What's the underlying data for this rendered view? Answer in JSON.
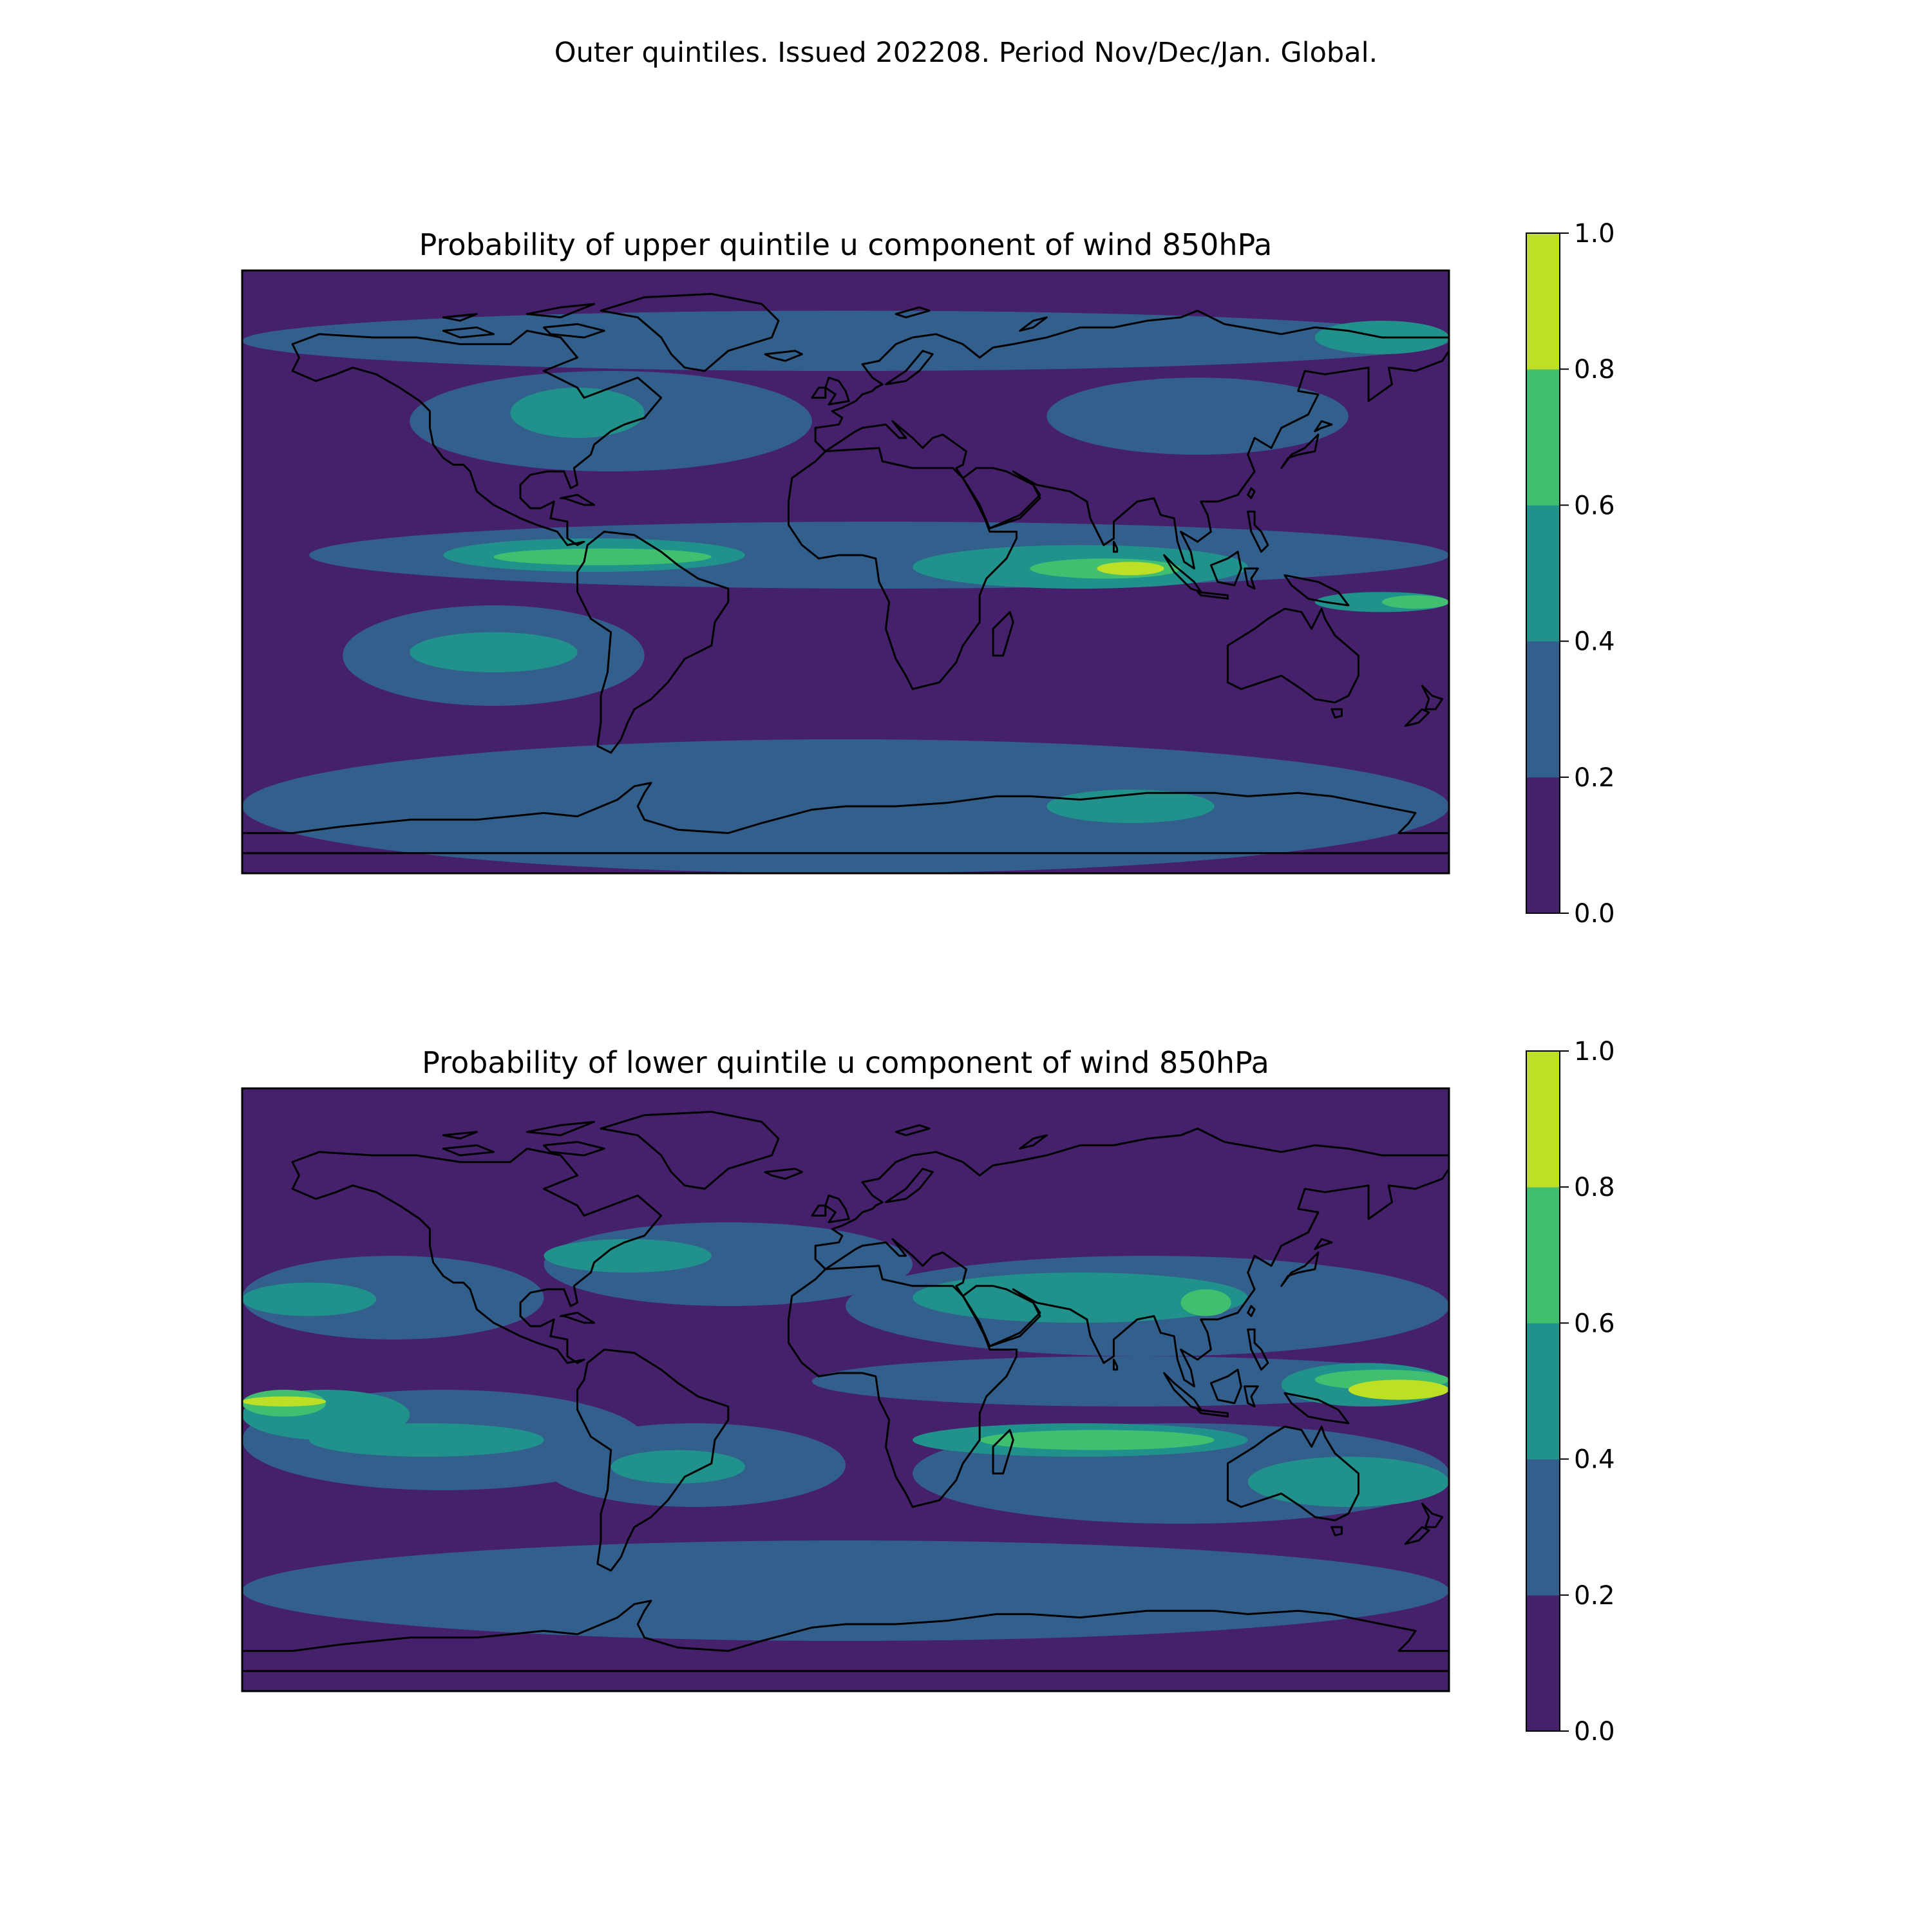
{
  "figure": {
    "suptitle": "Outer quintiles. Issued 202208. Period Nov/Dec/Jan. Global."
  },
  "colorbar": {
    "levels": [
      0.0,
      0.2,
      0.4,
      0.6,
      0.8,
      1.0
    ],
    "tick_labels": [
      "0.0",
      "0.2",
      "0.4",
      "0.6",
      "0.8",
      "1.0"
    ],
    "colors": [
      "#46216b",
      "#335f8d",
      "#21918c",
      "#42be71",
      "#bddf26"
    ]
  },
  "chart_data": [
    {
      "type": "heatmap",
      "title": "Probability of upper quintile u component of wind 850hPa",
      "xlim": [
        -180,
        180
      ],
      "ylim": [
        -90,
        90
      ],
      "colorbar_range": [
        0.0,
        1.0
      ],
      "background_class": 0,
      "regions": [
        {
          "class": 1,
          "lon": [
            -180,
            180
          ],
          "lat": [
            60,
            78
          ]
        },
        {
          "class": 1,
          "lon": [
            -130,
            -10
          ],
          "lat": [
            30,
            60
          ]
        },
        {
          "class": 1,
          "lon": [
            60,
            150
          ],
          "lat": [
            35,
            58
          ]
        },
        {
          "class": 1,
          "lon": [
            -160,
            180
          ],
          "lat": [
            -5,
            15
          ]
        },
        {
          "class": 1,
          "lon": [
            -150,
            -60
          ],
          "lat": [
            -40,
            -10
          ]
        },
        {
          "class": 1,
          "lon": [
            -180,
            180
          ],
          "lat": [
            -90,
            -50
          ]
        },
        {
          "class": 2,
          "lon": [
            -100,
            -60
          ],
          "lat": [
            40,
            55
          ]
        },
        {
          "class": 2,
          "lon": [
            140,
            180
          ],
          "lat": [
            65,
            75
          ]
        },
        {
          "class": 2,
          "lon": [
            -120,
            -30
          ],
          "lat": [
            0,
            10
          ]
        },
        {
          "class": 2,
          "lon": [
            20,
            120
          ],
          "lat": [
            -5,
            8
          ]
        },
        {
          "class": 2,
          "lon": [
            140,
            180
          ],
          "lat": [
            -12,
            -6
          ]
        },
        {
          "class": 2,
          "lon": [
            -130,
            -80
          ],
          "lat": [
            -30,
            -18
          ]
        },
        {
          "class": 2,
          "lon": [
            60,
            110
          ],
          "lat": [
            -75,
            -65
          ]
        },
        {
          "class": 3,
          "lon": [
            -105,
            -40
          ],
          "lat": [
            2,
            7
          ]
        },
        {
          "class": 3,
          "lon": [
            55,
            100
          ],
          "lat": [
            -2,
            4
          ]
        },
        {
          "class": 3,
          "lon": [
            160,
            180
          ],
          "lat": [
            -11,
            -7
          ]
        },
        {
          "class": 4,
          "lon": [
            75,
            95
          ],
          "lat": [
            -1,
            3
          ]
        }
      ]
    },
    {
      "type": "heatmap",
      "title": "Probability of lower quintile u component of wind 850hPa",
      "xlim": [
        -180,
        180
      ],
      "ylim": [
        -90,
        90
      ],
      "colorbar_range": [
        0.0,
        1.0
      ],
      "background_class": 0,
      "regions": [
        {
          "class": 1,
          "lon": [
            -180,
            -90
          ],
          "lat": [
            15,
            40
          ]
        },
        {
          "class": 1,
          "lon": [
            -90,
            20
          ],
          "lat": [
            25,
            50
          ]
        },
        {
          "class": 1,
          "lon": [
            0,
            180
          ],
          "lat": [
            10,
            40
          ]
        },
        {
          "class": 1,
          "lon": [
            -180,
            -60
          ],
          "lat": [
            -30,
            0
          ]
        },
        {
          "class": 1,
          "lon": [
            -90,
            0
          ],
          "lat": [
            -35,
            -10
          ]
        },
        {
          "class": 1,
          "lon": [
            20,
            180
          ],
          "lat": [
            -40,
            -10
          ]
        },
        {
          "class": 1,
          "lon": [
            -180,
            180
          ],
          "lat": [
            -75,
            -45
          ]
        },
        {
          "class": 1,
          "lon": [
            -10,
            180
          ],
          "lat": [
            -5,
            10
          ]
        },
        {
          "class": 2,
          "lon": [
            -180,
            -140
          ],
          "lat": [
            22,
            32
          ]
        },
        {
          "class": 2,
          "lon": [
            -90,
            -40
          ],
          "lat": [
            35,
            45
          ]
        },
        {
          "class": 2,
          "lon": [
            20,
            120
          ],
          "lat": [
            20,
            35
          ]
        },
        {
          "class": 2,
          "lon": [
            -180,
            -130
          ],
          "lat": [
            -15,
            0
          ]
        },
        {
          "class": 2,
          "lon": [
            -160,
            -90
          ],
          "lat": [
            -20,
            -10
          ]
        },
        {
          "class": 2,
          "lon": [
            -70,
            -30
          ],
          "lat": [
            -28,
            -18
          ]
        },
        {
          "class": 2,
          "lon": [
            20,
            120
          ],
          "lat": [
            -20,
            -10
          ]
        },
        {
          "class": 2,
          "lon": [
            120,
            180
          ],
          "lat": [
            -35,
            -20
          ]
        },
        {
          "class": 2,
          "lon": [
            130,
            180
          ],
          "lat": [
            -5,
            8
          ]
        },
        {
          "class": 3,
          "lon": [
            -180,
            -155
          ],
          "lat": [
            -8,
            0
          ]
        },
        {
          "class": 3,
          "lon": [
            40,
            110
          ],
          "lat": [
            -18,
            -12
          ]
        },
        {
          "class": 3,
          "lon": [
            140,
            180
          ],
          "lat": [
            0,
            6
          ]
        },
        {
          "class": 3,
          "lon": [
            100,
            115
          ],
          "lat": [
            22,
            30
          ]
        },
        {
          "class": 4,
          "lon": [
            -180,
            -155
          ],
          "lat": [
            -5,
            -2
          ]
        },
        {
          "class": 4,
          "lon": [
            150,
            180
          ],
          "lat": [
            -3,
            3
          ]
        }
      ]
    }
  ]
}
